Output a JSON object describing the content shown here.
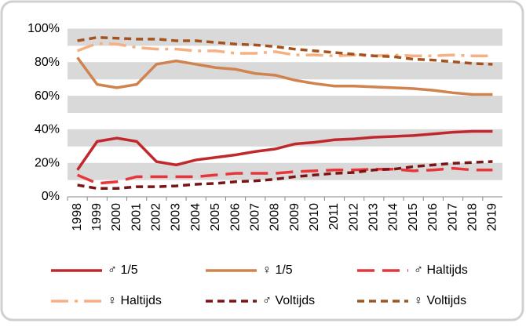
{
  "chart_data": {
    "type": "line",
    "categories": [
      "1998",
      "1999",
      "2000",
      "2001",
      "2002",
      "2003",
      "2004",
      "2005",
      "2006",
      "2007",
      "2008",
      "2009",
      "2010",
      "2011",
      "2012",
      "2013",
      "2014",
      "2015",
      "2016",
      "2017",
      "2018",
      "2019"
    ],
    "series": [
      {
        "name": "♂ 1/5",
        "color": "#c0282d",
        "linestyle": "solid",
        "values": [
          16,
          33,
          35,
          33,
          21,
          19,
          22,
          23.5,
          25,
          27,
          28.5,
          31.5,
          32.5,
          34,
          34.5,
          35.5,
          36,
          36.5,
          37.5,
          38.5,
          39,
          39
        ]
      },
      {
        "name": "♀ 1/5",
        "color": "#d0834e",
        "linestyle": "solid",
        "values": [
          83,
          67,
          65,
          67,
          79,
          81,
          79,
          77,
          76,
          73.5,
          72.5,
          69.5,
          67.5,
          66,
          66,
          65.5,
          65,
          64.5,
          63.5,
          62,
          61,
          61
        ]
      },
      {
        "name": "♂ Haltijds",
        "color": "#e8353a",
        "linestyle": "longdash",
        "values": [
          13,
          8,
          9,
          12,
          12,
          12,
          12,
          13,
          14,
          14,
          14,
          15,
          15.5,
          16,
          16,
          16.5,
          16.5,
          15.5,
          16,
          17,
          16,
          16
        ]
      },
      {
        "name": "♀ Haltijds",
        "color": "#f5b183",
        "linestyle": "longdashdot",
        "values": [
          87,
          91.5,
          91,
          89,
          88,
          88,
          87,
          87,
          85.5,
          85.5,
          86.5,
          84.5,
          84.5,
          84,
          84.5,
          84,
          84.5,
          84,
          84,
          84.5,
          84,
          84
        ]
      },
      {
        "name": "♂ Voltijds",
        "color": "#7b1414",
        "linestyle": "dash",
        "values": [
          7,
          5,
          5,
          6,
          6,
          6.5,
          7.5,
          8,
          9,
          9.5,
          10.5,
          12,
          13,
          14,
          14.5,
          16,
          16.5,
          18,
          19,
          20,
          20.5,
          21
        ]
      },
      {
        "name": "♀ Voltijds",
        "color": "#a5531e",
        "linestyle": "dash",
        "values": [
          93,
          95,
          94.5,
          94,
          94,
          93,
          93,
          92,
          91,
          90.5,
          89.5,
          88,
          87,
          86,
          85,
          84,
          83.5,
          82,
          81.5,
          80.5,
          79.5,
          79
        ]
      }
    ],
    "ylim": [
      0,
      100
    ],
    "yticks": [
      {
        "value": 0,
        "label": "0%"
      },
      {
        "value": 20,
        "label": "20%"
      },
      {
        "value": 40,
        "label": "40%"
      },
      {
        "value": 60,
        "label": "60%"
      },
      {
        "value": 80,
        "label": "80%"
      },
      {
        "value": 100,
        "label": "100%"
      }
    ],
    "grid": true,
    "legend": "bottom"
  }
}
